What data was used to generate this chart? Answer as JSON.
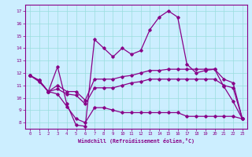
{
  "xlabel": "Windchill (Refroidissement éolien,°C)",
  "bg_color": "#cceeff",
  "grid_color": "#99dddd",
  "line_color": "#880088",
  "xlim": [
    -0.5,
    23.5
  ],
  "ylim": [
    7.5,
    17.5
  ],
  "yticks": [
    8,
    9,
    10,
    11,
    12,
    13,
    14,
    15,
    16,
    17
  ],
  "xticks": [
    0,
    1,
    2,
    3,
    4,
    5,
    6,
    7,
    8,
    9,
    10,
    11,
    12,
    13,
    14,
    15,
    16,
    17,
    18,
    19,
    20,
    21,
    22,
    23
  ],
  "series1_y": [
    11.8,
    11.4,
    10.5,
    12.5,
    9.5,
    7.8,
    7.7,
    14.7,
    14.0,
    13.3,
    14.0,
    13.5,
    13.8,
    15.5,
    16.5,
    17.0,
    16.5,
    12.7,
    12.0,
    12.2,
    12.3,
    10.9,
    9.7,
    8.3
  ],
  "series2_y": [
    11.8,
    11.4,
    10.5,
    11.0,
    10.5,
    10.5,
    9.8,
    11.5,
    11.5,
    11.5,
    11.7,
    11.8,
    12.0,
    12.2,
    12.2,
    12.3,
    12.3,
    12.3,
    12.3,
    12.3,
    12.3,
    11.5,
    11.2,
    8.3
  ],
  "series3_y": [
    11.8,
    11.4,
    10.5,
    10.7,
    10.3,
    10.2,
    9.5,
    10.8,
    10.8,
    10.8,
    11.0,
    11.2,
    11.3,
    11.5,
    11.5,
    11.5,
    11.5,
    11.5,
    11.5,
    11.5,
    11.5,
    11.0,
    10.8,
    8.3
  ],
  "series4_y": [
    11.8,
    11.3,
    10.5,
    10.3,
    9.3,
    8.3,
    8.0,
    9.2,
    9.2,
    9.0,
    8.8,
    8.8,
    8.8,
    8.8,
    8.8,
    8.8,
    8.8,
    8.5,
    8.5,
    8.5,
    8.5,
    8.5,
    8.5,
    8.3
  ]
}
